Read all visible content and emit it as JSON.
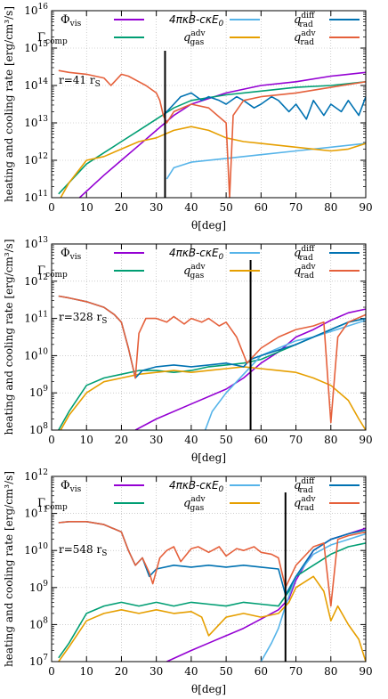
{
  "legend_labels": {
    "vis_base": "Φ",
    "vis_sub": "vis",
    "comp_base": "Γ",
    "comp_sub": "comp",
    "rad": "4πκB-cκE",
    "rad_sub": "0",
    "qgas_base": "q",
    "qgas_sup": "adv",
    "qgas_sub": "gas",
    "qdiff_base": "q",
    "qdiff_sup": "diff",
    "qdiff_sub": "rad",
    "qadv_base": "q",
    "qadv_sup": "adv",
    "qadv_sub": "rad"
  },
  "colors": {
    "vis": "#9400d3",
    "comp": "#009e73",
    "rad": "#56b4e9",
    "qgas": "#e69f00",
    "qdiff": "#0072b2",
    "qadv": "#e5603b",
    "marker": "#000000"
  },
  "xlabel": "θ[deg]",
  "ylabel": "heating and cooling rate [erg/cm³/s]",
  "chart_data": [
    {
      "type": "line",
      "radius_label": "r=41 r",
      "radius_sub": "S",
      "x_ticks": [
        0,
        10,
        20,
        30,
        40,
        50,
        60,
        70,
        80,
        90
      ],
      "xlim": [
        0,
        90
      ],
      "y_scale": "log",
      "ylim_exp": [
        11,
        16
      ],
      "y_ticks": [
        "10^11",
        "10^12",
        "10^13",
        "10^14",
        "10^15",
        "10^16"
      ],
      "vertical_line_x": 32.5,
      "series": [
        {
          "key": "vis",
          "x": [
            8,
            15,
            20,
            25,
            30,
            35,
            40,
            50,
            60,
            70,
            80,
            90
          ],
          "log10y": [
            11.0,
            11.6,
            12.0,
            12.4,
            12.8,
            13.2,
            13.5,
            13.8,
            14.0,
            14.1,
            14.25,
            14.35
          ]
        },
        {
          "key": "comp",
          "x": [
            2,
            5,
            10,
            15,
            20,
            25,
            30,
            35,
            40,
            50,
            60,
            70,
            80,
            90
          ],
          "log10y": [
            11.1,
            11.4,
            11.9,
            12.2,
            12.5,
            12.8,
            13.1,
            13.4,
            13.6,
            13.75,
            13.85,
            13.95,
            14.0,
            14.1
          ]
        },
        {
          "key": "rad",
          "x": [
            33,
            35,
            40,
            50,
            60,
            70,
            80,
            90
          ],
          "log10y": [
            11.5,
            11.8,
            11.95,
            12.05,
            12.15,
            12.25,
            12.35,
            12.45
          ]
        },
        {
          "key": "qgas",
          "x": [
            2,
            5,
            10,
            15,
            20,
            25,
            30,
            35,
            40,
            45,
            50,
            55,
            60,
            65,
            70,
            75,
            80,
            85,
            90
          ],
          "log10y": [
            10.9,
            11.4,
            12.0,
            12.1,
            12.3,
            12.5,
            12.6,
            12.8,
            12.9,
            12.8,
            12.6,
            12.5,
            12.45,
            12.4,
            12.35,
            12.3,
            12.25,
            12.3,
            12.45
          ]
        },
        {
          "key": "qdiff",
          "x": [
            32,
            35,
            37,
            40,
            43,
            45,
            48,
            50,
            53,
            55,
            58,
            60,
            63,
            65,
            68,
            70,
            73,
            75,
            78,
            80,
            83,
            85,
            88,
            90
          ],
          "log10y": [
            13.2,
            13.5,
            13.7,
            13.8,
            13.6,
            13.7,
            13.6,
            13.5,
            13.7,
            13.6,
            13.4,
            13.5,
            13.7,
            13.6,
            13.3,
            13.5,
            13.1,
            13.6,
            13.2,
            13.5,
            13.3,
            13.6,
            13.2,
            13.7
          ]
        },
        {
          "key": "qadv",
          "x": [
            2,
            5,
            10,
            15,
            17,
            20,
            22,
            25,
            27,
            30,
            31,
            32,
            33,
            35,
            40,
            45,
            50,
            51,
            52,
            55,
            60,
            70,
            80,
            90
          ],
          "log10y": [
            14.4,
            14.35,
            14.3,
            14.2,
            14.0,
            14.3,
            14.25,
            14.1,
            14.0,
            13.8,
            13.6,
            13.2,
            13.0,
            13.3,
            13.5,
            13.4,
            13.0,
            11.0,
            13.2,
            13.6,
            13.7,
            13.8,
            13.95,
            14.1
          ]
        }
      ]
    },
    {
      "type": "line",
      "radius_label": "r=328 r",
      "radius_sub": "S",
      "x_ticks": [
        0,
        10,
        20,
        30,
        40,
        50,
        60,
        70,
        80,
        90
      ],
      "xlim": [
        0,
        90
      ],
      "y_scale": "log",
      "ylim_exp": [
        8,
        13
      ],
      "y_ticks": [
        "10^8",
        "10^9",
        "10^10",
        "10^11",
        "10^12",
        "10^13"
      ],
      "vertical_line_x": 57,
      "series": [
        {
          "key": "vis",
          "x": [
            24,
            30,
            40,
            50,
            55,
            60,
            65,
            70,
            75,
            80,
            85,
            90
          ],
          "log10y": [
            8.0,
            8.3,
            8.7,
            9.1,
            9.4,
            9.8,
            10.1,
            10.5,
            10.7,
            10.95,
            11.15,
            11.25
          ]
        },
        {
          "key": "comp",
          "x": [
            2,
            5,
            10,
            15,
            20,
            25,
            30,
            35,
            40,
            45,
            50,
            55,
            60,
            65,
            70,
            75,
            80,
            85,
            90
          ],
          "log10y": [
            8.0,
            8.5,
            9.2,
            9.4,
            9.5,
            9.6,
            9.6,
            9.55,
            9.6,
            9.7,
            9.75,
            9.8,
            9.9,
            10.1,
            10.3,
            10.5,
            10.7,
            10.9,
            11.0
          ]
        },
        {
          "key": "rad",
          "x": [
            44,
            46,
            50,
            55,
            58,
            60,
            65,
            70,
            75,
            80,
            85,
            90
          ],
          "log10y": [
            8.0,
            8.5,
            9.0,
            9.5,
            9.8,
            10.0,
            10.2,
            10.4,
            10.5,
            10.65,
            10.8,
            10.95
          ]
        },
        {
          "key": "qgas",
          "x": [
            2,
            5,
            10,
            15,
            20,
            25,
            30,
            35,
            40,
            45,
            50,
            55,
            60,
            65,
            70,
            75,
            80,
            85,
            88,
            90
          ],
          "log10y": [
            7.9,
            8.4,
            9.0,
            9.3,
            9.4,
            9.5,
            9.55,
            9.6,
            9.55,
            9.6,
            9.65,
            9.7,
            9.65,
            9.6,
            9.55,
            9.4,
            9.2,
            8.8,
            8.3,
            8.0
          ]
        },
        {
          "key": "qdiff",
          "x": [
            2,
            5,
            10,
            15,
            18,
            20,
            22,
            24,
            26,
            30,
            35,
            40,
            45,
            50,
            55,
            57,
            60,
            65,
            70,
            75,
            80,
            85,
            90
          ],
          "log10y": [
            11.6,
            11.55,
            11.45,
            11.3,
            11.1,
            10.9,
            10.2,
            9.4,
            9.6,
            9.7,
            9.75,
            9.7,
            9.75,
            9.8,
            9.7,
            9.9,
            10.0,
            10.15,
            10.3,
            10.5,
            10.7,
            10.9,
            11.0
          ]
        },
        {
          "key": "qadv",
          "x": [
            2,
            5,
            10,
            15,
            18,
            20,
            22,
            24,
            25,
            27,
            30,
            33,
            35,
            38,
            40,
            43,
            45,
            48,
            50,
            53,
            56,
            60,
            65,
            70,
            75,
            78,
            80,
            82,
            85,
            90
          ],
          "log10y": [
            11.6,
            11.55,
            11.45,
            11.3,
            11.1,
            10.9,
            10.2,
            9.4,
            10.6,
            11.0,
            11.0,
            10.9,
            11.05,
            10.85,
            11.0,
            10.9,
            11.0,
            10.8,
            10.9,
            10.5,
            9.8,
            10.2,
            10.5,
            10.7,
            10.8,
            10.9,
            8.2,
            10.5,
            10.9,
            11.1
          ]
        }
      ]
    },
    {
      "type": "line",
      "radius_label": "r=548 r",
      "radius_sub": "S",
      "x_ticks": [
        0,
        10,
        20,
        30,
        40,
        50,
        60,
        70,
        80,
        90
      ],
      "xlim": [
        0,
        90
      ],
      "y_scale": "log",
      "ylim_exp": [
        7,
        12
      ],
      "y_ticks": [
        "10^7",
        "10^8",
        "10^9",
        "10^10",
        "10^11",
        "10^12"
      ],
      "vertical_line_x": 67,
      "series": [
        {
          "key": "vis",
          "x": [
            33,
            40,
            45,
            50,
            55,
            60,
            65,
            68,
            70,
            75,
            80,
            85,
            90
          ],
          "log10y": [
            7.0,
            7.3,
            7.5,
            7.7,
            7.9,
            8.15,
            8.4,
            8.7,
            9.2,
            10.0,
            10.3,
            10.45,
            10.6
          ]
        },
        {
          "key": "comp",
          "x": [
            2,
            5,
            10,
            15,
            20,
            25,
            30,
            35,
            40,
            45,
            50,
            55,
            60,
            65,
            68,
            70,
            75,
            80,
            85,
            90
          ],
          "log10y": [
            7.1,
            7.5,
            8.3,
            8.5,
            8.6,
            8.5,
            8.6,
            8.5,
            8.6,
            8.55,
            8.5,
            8.6,
            8.55,
            8.5,
            8.9,
            9.3,
            9.6,
            9.9,
            10.1,
            10.2
          ]
        },
        {
          "key": "rad",
          "x": [
            60,
            63,
            65,
            67,
            70,
            75,
            80,
            85,
            90
          ],
          "log10y": [
            7.0,
            7.5,
            7.9,
            8.5,
            9.3,
            9.9,
            10.15,
            10.3,
            10.45
          ]
        },
        {
          "key": "qgas",
          "x": [
            2,
            5,
            10,
            15,
            20,
            25,
            30,
            35,
            40,
            43,
            45,
            50,
            55,
            60,
            65,
            68,
            70,
            75,
            78,
            80,
            82,
            85,
            88,
            90
          ],
          "log10y": [
            7.0,
            7.4,
            8.1,
            8.3,
            8.4,
            8.3,
            8.4,
            8.3,
            8.35,
            8.2,
            7.7,
            8.2,
            8.3,
            8.2,
            8.3,
            8.6,
            9.0,
            9.3,
            8.9,
            8.1,
            8.5,
            8.0,
            7.6,
            7.0
          ]
        },
        {
          "key": "qdiff",
          "x": [
            2,
            5,
            10,
            15,
            20,
            22,
            24,
            26,
            28,
            30,
            35,
            40,
            45,
            50,
            55,
            60,
            65,
            67,
            70,
            75,
            80,
            85,
            90
          ],
          "log10y": [
            10.75,
            10.78,
            10.78,
            10.7,
            10.5,
            10.0,
            9.6,
            9.8,
            9.3,
            9.5,
            9.6,
            9.55,
            9.6,
            9.55,
            9.6,
            9.55,
            9.5,
            8.8,
            9.3,
            10.0,
            10.3,
            10.45,
            10.55
          ]
        },
        {
          "key": "qadv",
          "x": [
            2,
            5,
            10,
            15,
            20,
            22,
            24,
            26,
            28,
            29,
            31,
            33,
            35,
            37,
            40,
            42,
            45,
            48,
            50,
            53,
            55,
            58,
            60,
            63,
            65,
            67,
            70,
            75,
            78,
            80,
            82,
            85,
            90
          ],
          "log10y": [
            10.75,
            10.78,
            10.78,
            10.7,
            10.5,
            10.0,
            9.6,
            9.8,
            9.4,
            9.1,
            9.8,
            10.0,
            10.1,
            9.7,
            10.05,
            10.1,
            9.95,
            10.1,
            9.85,
            10.05,
            10.0,
            10.1,
            9.95,
            9.9,
            9.8,
            9.0,
            9.6,
            10.1,
            10.2,
            8.5,
            10.3,
            10.4,
            10.5
          ]
        }
      ]
    }
  ]
}
